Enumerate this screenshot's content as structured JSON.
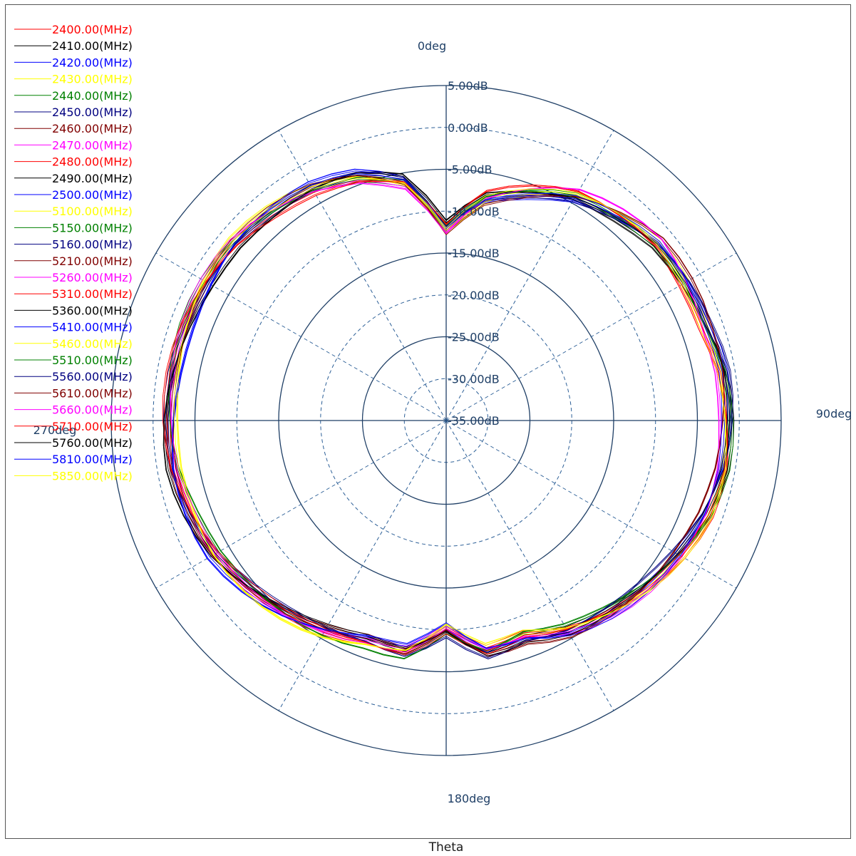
{
  "chart_data": {
    "type": "polar-line",
    "angle_axis": {
      "title": "Theta",
      "labels": [
        "0deg",
        "90deg",
        "180deg",
        "270deg"
      ],
      "zero_location": "top",
      "direction": "clockwise"
    },
    "radial_axis": {
      "unit": "dB",
      "min": -35,
      "max": 5,
      "ticks": [
        5,
        0,
        -5,
        -10,
        -15,
        -20,
        -25,
        -30,
        -35
      ],
      "tick_labels": [
        "5.00dB",
        "0.00dB",
        "-5.00dB",
        "-10.00dB",
        "-15.00dB",
        "-20.00dB",
        "-25.00dB",
        "-30.00dB",
        "-35.00dB"
      ]
    },
    "grid": true,
    "legend_position": "top-left",
    "pattern_anchors": {
      "theta_deg": [
        0,
        10,
        20,
        30,
        40,
        50,
        60,
        70,
        80,
        90,
        100,
        110,
        120,
        130,
        140,
        150,
        160,
        170,
        180,
        190,
        200,
        210,
        220,
        230,
        240,
        250,
        260,
        270,
        280,
        290,
        300,
        310,
        320,
        330,
        340,
        350
      ],
      "gain_db": [
        -12,
        -8,
        -6,
        -4,
        -3,
        -2,
        -2,
        -2,
        -1.5,
        -1.5,
        -1.5,
        -2,
        -3,
        -4,
        -5,
        -6,
        -7.5,
        -7,
        -10,
        -7,
        -7,
        -6,
        -5,
        -4,
        -3,
        -2.5,
        -2,
        -2,
        -2,
        -2,
        -2,
        -2,
        -2.5,
        -3,
        -4,
        -6
      ]
    },
    "series": [
      {
        "name": "2400.00(MHz)",
        "color": "#ff0000"
      },
      {
        "name": "2410.00(MHz)",
        "color": "#000000"
      },
      {
        "name": "2420.00(MHz)",
        "color": "#0000ff"
      },
      {
        "name": "2430.00(MHz)",
        "color": "#ffff00"
      },
      {
        "name": "2440.00(MHz)",
        "color": "#008000"
      },
      {
        "name": "2450.00(MHz)",
        "color": "#000080"
      },
      {
        "name": "2460.00(MHz)",
        "color": "#800000"
      },
      {
        "name": "2470.00(MHz)",
        "color": "#ff00ff"
      },
      {
        "name": "2480.00(MHz)",
        "color": "#ff0000"
      },
      {
        "name": "2490.00(MHz)",
        "color": "#000000"
      },
      {
        "name": "2500.00(MHz)",
        "color": "#0000ff"
      },
      {
        "name": "5100.00(MHz)",
        "color": "#ffff00"
      },
      {
        "name": "5150.00(MHz)",
        "color": "#008000"
      },
      {
        "name": "5160.00(MHz)",
        "color": "#000080"
      },
      {
        "name": "5210.00(MHz)",
        "color": "#800000"
      },
      {
        "name": "5260.00(MHz)",
        "color": "#ff00ff"
      },
      {
        "name": "5310.00(MHz)",
        "color": "#ff0000"
      },
      {
        "name": "5360.00(MHz)",
        "color": "#000000"
      },
      {
        "name": "5410.00(MHz)",
        "color": "#0000ff"
      },
      {
        "name": "5460.00(MHz)",
        "color": "#ffff00"
      },
      {
        "name": "5510.00(MHz)",
        "color": "#008000"
      },
      {
        "name": "5560.00(MHz)",
        "color": "#000080"
      },
      {
        "name": "5610.00(MHz)",
        "color": "#800000"
      },
      {
        "name": "5660.00(MHz)",
        "color": "#ff00ff"
      },
      {
        "name": "5710.00(MHz)",
        "color": "#ff0000"
      },
      {
        "name": "5760.00(MHz)",
        "color": "#000000"
      },
      {
        "name": "5810.00(MHz)",
        "color": "#0000ff"
      },
      {
        "name": "5850.00(MHz)",
        "color": "#ffff00"
      }
    ]
  }
}
